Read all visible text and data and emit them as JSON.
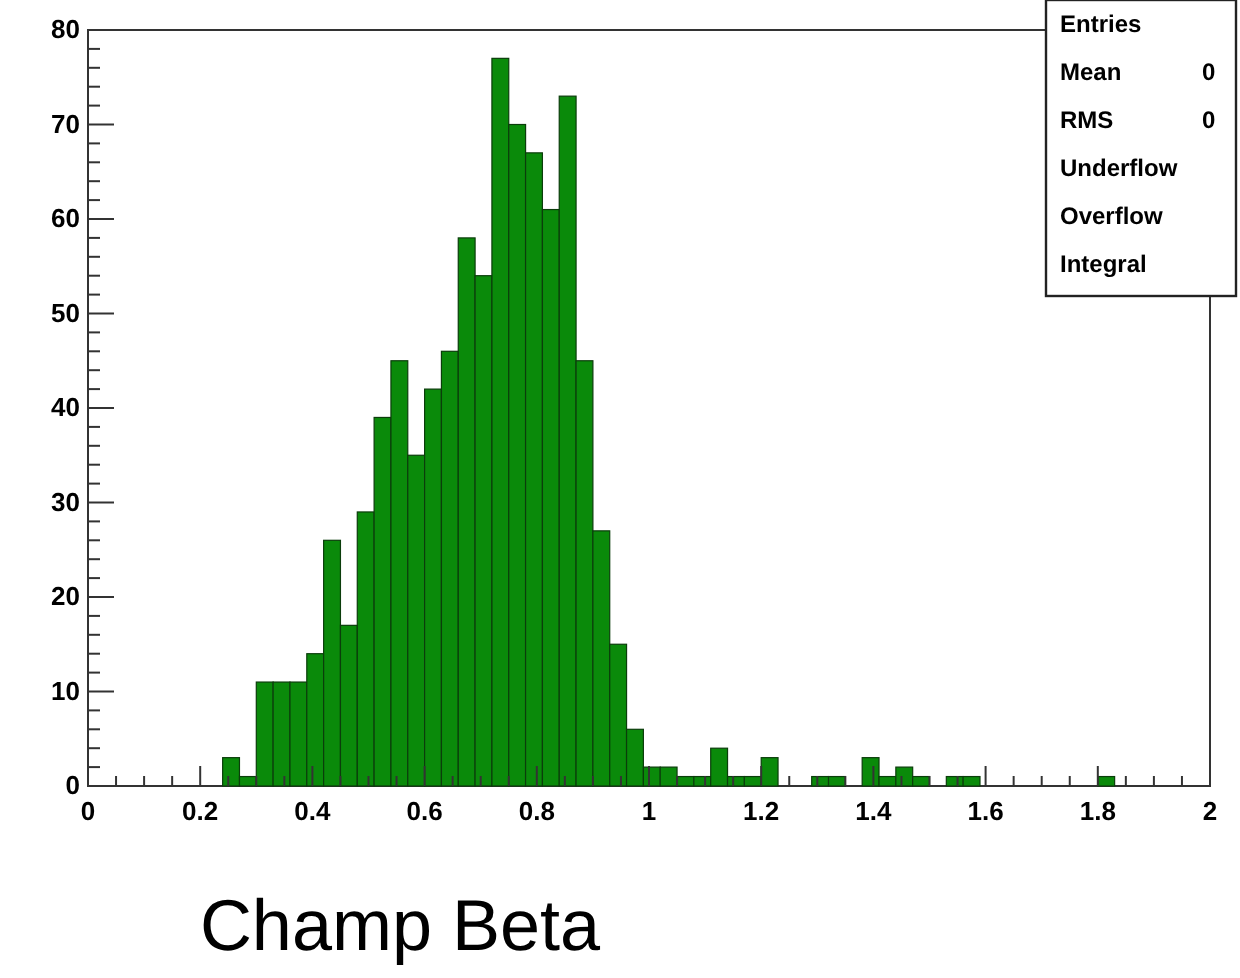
{
  "chart_data": {
    "type": "histogram",
    "xlabel": "Champ Beta",
    "bins": [
      0.24,
      0.27,
      0.3,
      0.33,
      0.36,
      0.39,
      0.42,
      0.45,
      0.48,
      0.51,
      0.54,
      0.57,
      0.6,
      0.63,
      0.66,
      0.69,
      0.72,
      0.75,
      0.78,
      0.81,
      0.84,
      0.87,
      0.9,
      0.93,
      0.96,
      0.99,
      1.02,
      1.05,
      1.08,
      1.11,
      1.14,
      1.17,
      1.2,
      1.23,
      1.26,
      1.29,
      1.32,
      1.35,
      1.38,
      1.41,
      1.44,
      1.47,
      1.5,
      1.53,
      1.56,
      1.59,
      1.62,
      1.65,
      1.68,
      1.71,
      1.74,
      1.77,
      1.8,
      1.83
    ],
    "values": [
      3,
      1,
      11,
      11,
      11,
      14,
      26,
      17,
      29,
      39,
      45,
      35,
      42,
      46,
      58,
      54,
      77,
      70,
      67,
      61,
      73,
      45,
      27,
      15,
      6,
      2,
      2,
      1,
      1,
      4,
      1,
      1,
      3,
      0,
      0,
      1,
      1,
      0,
      3,
      1,
      2,
      1,
      0,
      1,
      1,
      0,
      0,
      0,
      0,
      0,
      0,
      0,
      1
    ],
    "color": "#0a8a0a",
    "xlim": [
      0,
      2
    ],
    "ylim": [
      0,
      80
    ],
    "xticks": [
      0,
      {
        "value": 0.2,
        "label": "0.2"
      },
      {
        "value": 0.4,
        "label": "0.4"
      },
      {
        "value": 0.6,
        "label": "0.6"
      },
      {
        "value": 0.8,
        "label": "0.8"
      },
      1,
      {
        "value": 1.2,
        "label": "1.2"
      },
      {
        "value": 1.4,
        "label": "1.4"
      },
      {
        "value": 1.6,
        "label": "1.6"
      },
      {
        "value": 1.8,
        "label": "1.8"
      },
      2
    ],
    "yticks": [
      0,
      10,
      20,
      30,
      40,
      50,
      60,
      70,
      80
    ],
    "annotations": [
      "Entries",
      "Mean 0",
      "RMS 0",
      "Underflow",
      "Overflow",
      "Integral"
    ]
  }
}
